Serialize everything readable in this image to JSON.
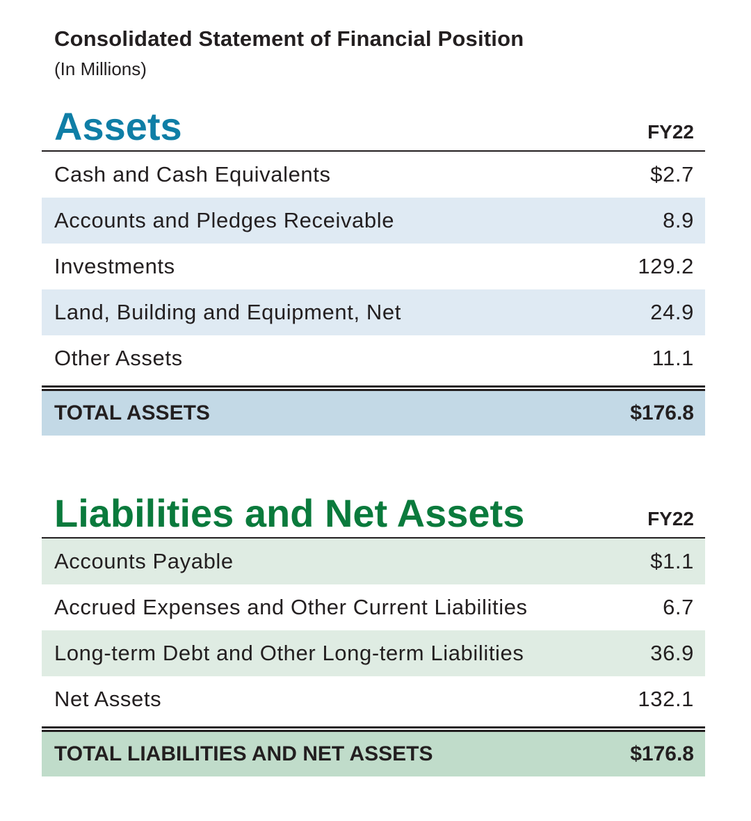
{
  "document": {
    "title": "Consolidated Statement of Financial Position",
    "subtitle": "(In Millions)"
  },
  "assets": {
    "heading": "Assets",
    "column_header": "FY22",
    "accent_color": "#0f7ea6",
    "rows": [
      {
        "label": "Cash and Cash Equivalents",
        "value": "$2.7"
      },
      {
        "label": "Accounts and Pledges Receivable",
        "value": "8.9"
      },
      {
        "label": "Investments",
        "value": "129.2"
      },
      {
        "label": "Land, Building and Equipment, Net",
        "value": "24.9"
      },
      {
        "label": "Other Assets",
        "value": "11.1"
      }
    ],
    "total": {
      "label": "TOTAL ASSETS",
      "value": "$176.8"
    }
  },
  "liabilities": {
    "heading": "Liabilities and Net Assets",
    "column_header": "FY22",
    "accent_color": "#0a7a3c",
    "rows": [
      {
        "label": "Accounts Payable",
        "value": "$1.1"
      },
      {
        "label": "Accrued Expenses and Other Current Liabilities",
        "value": "6.7"
      },
      {
        "label": "Long-term Debt and Other Long-term Liabilities",
        "value": "36.9"
      },
      {
        "label": "Net Assets",
        "value": "132.1"
      }
    ],
    "total": {
      "label": "TOTAL LIABILITIES AND NET ASSETS",
      "value": "$176.8"
    }
  }
}
